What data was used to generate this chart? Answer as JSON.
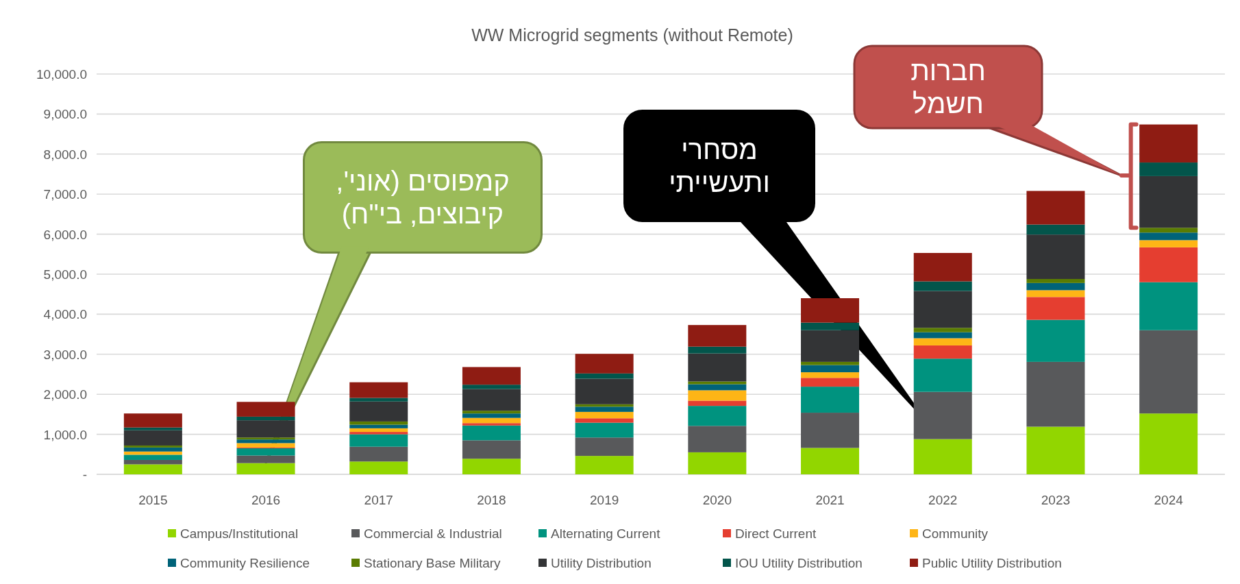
{
  "chart_data": {
    "type": "bar",
    "title": "WW Microgrid segments (without Remote)",
    "stacked": true,
    "categories": [
      "2015",
      "2016",
      "2017",
      "2018",
      "2019",
      "2020",
      "2021",
      "2022",
      "2023",
      "2024"
    ],
    "series": [
      {
        "name": "Campus/Institutional",
        "color": "#92d600",
        "values": [
          250,
          280,
          320,
          390,
          460,
          550,
          660,
          880,
          1190,
          1520
        ]
      },
      {
        "name": "Commercial & Industrial",
        "color": "#58595b",
        "values": [
          110,
          190,
          370,
          460,
          460,
          660,
          880,
          1180,
          1620,
          2080
        ]
      },
      {
        "name": "Alternating Current",
        "color": "#00937f",
        "values": [
          130,
          180,
          310,
          370,
          370,
          500,
          650,
          830,
          1050,
          1200
        ]
      },
      {
        "name": "Direct Current",
        "color": "#e53e30",
        "values": [
          null,
          20,
          60,
          60,
          110,
          130,
          220,
          330,
          570,
          870
        ]
      },
      {
        "name": "Community",
        "color": "#feb516",
        "values": [
          80,
          110,
          90,
          130,
          160,
          260,
          140,
          180,
          170,
          180
        ]
      },
      {
        "name": "Community Resilience",
        "color": "#006379",
        "values": [
          100,
          90,
          90,
          110,
          130,
          150,
          180,
          150,
          180,
          190
        ]
      },
      {
        "name": "Stationary Base Military",
        "color": "#5a7c02",
        "values": [
          50,
          50,
          80,
          70,
          60,
          70,
          80,
          110,
          100,
          120
        ]
      },
      {
        "name": "Utility Distribution",
        "color": "#333436",
        "values": [
          380,
          430,
          500,
          540,
          640,
          700,
          790,
          920,
          1110,
          1290
        ]
      },
      {
        "name": "IOU Utility Distribution",
        "color": "#03554b",
        "values": [
          70,
          90,
          90,
          110,
          130,
          170,
          190,
          240,
          250,
          340
        ]
      },
      {
        "name": "Public Utility Distribution",
        "color": "#8f1c13",
        "values": [
          350,
          370,
          390,
          440,
          490,
          540,
          610,
          710,
          840,
          950
        ]
      }
    ],
    "ylim": [
      0,
      10000
    ],
    "yticks": [
      {
        "value": 0,
        "label": "-"
      },
      {
        "value": 1000,
        "label": "1,000.0"
      },
      {
        "value": 2000,
        "label": "2,000.0"
      },
      {
        "value": 3000,
        "label": "3,000.0"
      },
      {
        "value": 4000,
        "label": "4,000.0"
      },
      {
        "value": 5000,
        "label": "5,000.0"
      },
      {
        "value": 6000,
        "label": "6,000.0"
      },
      {
        "value": 7000,
        "label": "7,000.0"
      },
      {
        "value": 8000,
        "label": "8,000.0"
      },
      {
        "value": 9000,
        "label": "9,000.0"
      },
      {
        "value": 10000,
        "label": "10,000.0"
      }
    ],
    "grid": "y",
    "legend": "bottom",
    "annotations": [
      {
        "text": "קמפוסים (אוני', קיבוצים,  בי\"ח)",
        "x": "2016",
        "y": 280
      },
      "מסחרי ותעשייתי",
      "חברות חשמל"
    ]
  }
}
